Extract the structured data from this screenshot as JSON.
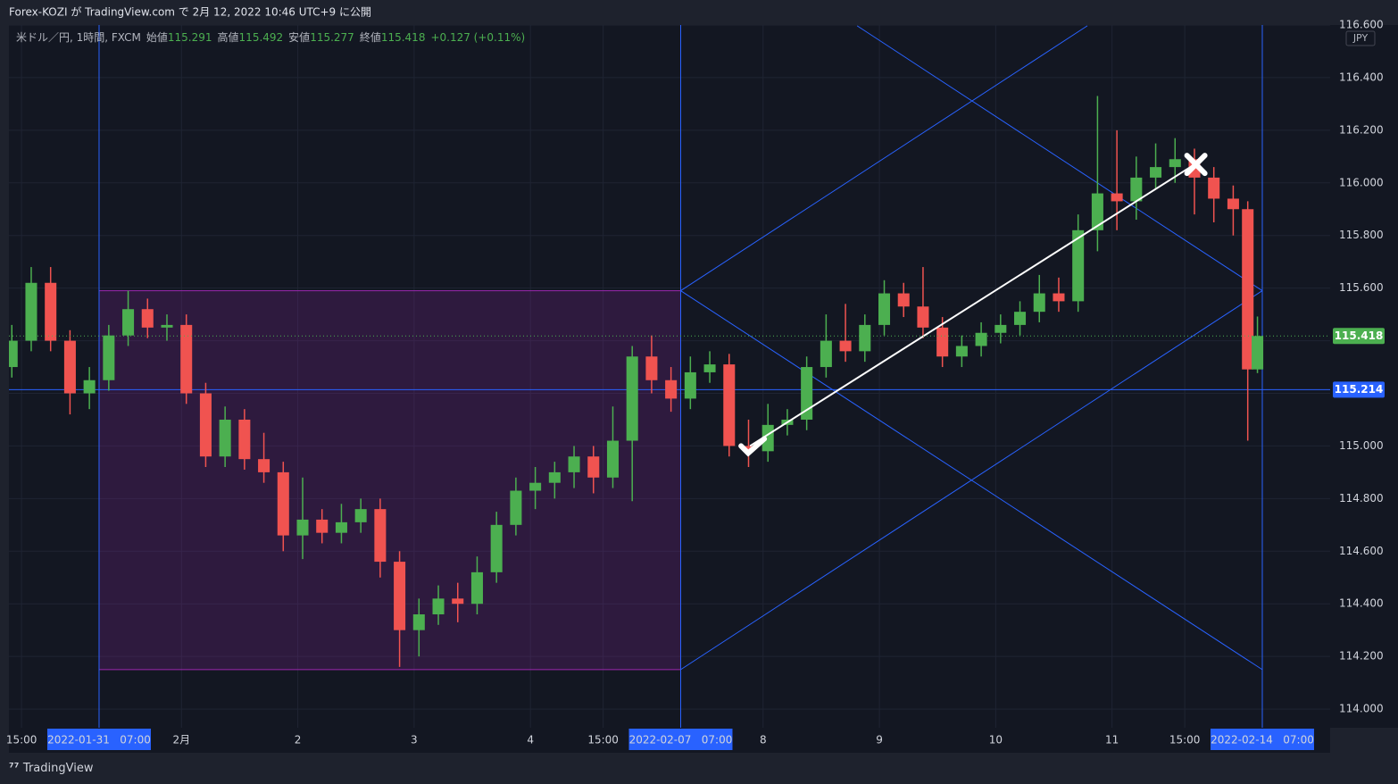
{
  "header": {
    "title": "Forex-KOZI が TradingView.com で 2月 12, 2022 10:46 UTC+9 に公開",
    "symbol": "米ドル／円, 1時間, FXCM",
    "open_label": "始値",
    "high_label": "高値",
    "low_label": "安値",
    "close_label": "終値",
    "change": "+0.127 (+0.11%)"
  },
  "footer": {
    "brand": "TradingView"
  },
  "chart_data": {
    "type": "candlestick",
    "currency": "JPY",
    "up_color": "#4caf50",
    "down_color": "#f05350",
    "x": [
      -11,
      -7,
      -3,
      1,
      5,
      9,
      13,
      17,
      21,
      25,
      29,
      33,
      37,
      41,
      45,
      49,
      53,
      57,
      61,
      65,
      69,
      73,
      77,
      81,
      85,
      89,
      93,
      97,
      101,
      105,
      109,
      113,
      117,
      121,
      125,
      129,
      133,
      137,
      141,
      145,
      149,
      153,
      157,
      161,
      165,
      169,
      173,
      177,
      181,
      185,
      189,
      193,
      197,
      201,
      205,
      209,
      213,
      217,
      221,
      225,
      229,
      233,
      237,
      241,
      244,
      246
    ],
    "open": [
      115.3,
      115.4,
      115.62,
      115.4,
      115.2,
      115.25,
      115.42,
      115.52,
      115.45,
      115.46,
      115.2,
      114.96,
      115.1,
      114.95,
      114.9,
      114.66,
      114.72,
      114.67,
      114.71,
      114.76,
      114.56,
      114.3,
      114.36,
      114.42,
      114.4,
      114.52,
      114.7,
      114.83,
      114.86,
      114.9,
      114.96,
      114.88,
      115.02,
      115.34,
      115.25,
      115.18,
      115.28,
      115.31,
      115.0,
      114.98,
      115.08,
      115.1,
      115.3,
      115.4,
      115.36,
      115.46,
      115.58,
      115.53,
      115.45,
      115.34,
      115.38,
      115.43,
      115.46,
      115.51,
      115.58,
      115.55,
      115.82,
      115.96,
      115.93,
      116.02,
      116.06,
      116.09,
      116.02,
      115.94,
      115.9,
      115.291
    ],
    "high": [
      115.46,
      115.68,
      115.68,
      115.44,
      115.3,
      115.46,
      115.59,
      115.56,
      115.5,
      115.5,
      115.24,
      115.15,
      115.14,
      115.05,
      114.94,
      114.88,
      114.76,
      114.78,
      114.8,
      114.8,
      114.6,
      114.42,
      114.47,
      114.48,
      114.58,
      114.75,
      114.88,
      114.92,
      114.94,
      115.0,
      115.0,
      115.15,
      115.38,
      115.42,
      115.3,
      115.34,
      115.36,
      115.35,
      115.1,
      115.16,
      115.14,
      115.34,
      115.5,
      115.54,
      115.5,
      115.63,
      115.62,
      115.68,
      115.49,
      115.42,
      115.47,
      115.5,
      115.55,
      115.65,
      115.64,
      115.88,
      116.33,
      116.2,
      116.1,
      116.15,
      116.17,
      116.13,
      116.06,
      115.99,
      115.93,
      115.492
    ],
    "low": [
      115.26,
      115.36,
      115.36,
      115.12,
      115.14,
      115.21,
      115.38,
      115.41,
      115.4,
      115.16,
      114.92,
      114.92,
      114.91,
      114.86,
      114.6,
      114.57,
      114.63,
      114.63,
      114.67,
      114.5,
      114.16,
      114.2,
      114.32,
      114.33,
      114.36,
      114.48,
      114.66,
      114.76,
      114.8,
      114.84,
      114.82,
      114.84,
      114.79,
      115.2,
      115.13,
      115.14,
      115.24,
      114.96,
      114.92,
      114.94,
      115.04,
      115.06,
      115.26,
      115.32,
      115.32,
      115.42,
      115.49,
      115.41,
      115.3,
      115.3,
      115.34,
      115.39,
      115.42,
      115.47,
      115.51,
      115.51,
      115.74,
      115.82,
      115.86,
      115.98,
      116.0,
      115.88,
      115.85,
      115.8,
      115.02,
      115.277
    ],
    "close": [
      115.4,
      115.62,
      115.4,
      115.2,
      115.25,
      115.42,
      115.52,
      115.45,
      115.46,
      115.2,
      114.96,
      115.1,
      114.95,
      114.9,
      114.66,
      114.72,
      114.67,
      114.71,
      114.76,
      114.56,
      114.3,
      114.36,
      114.42,
      114.4,
      114.52,
      114.7,
      114.83,
      114.86,
      114.9,
      114.96,
      114.88,
      115.02,
      115.34,
      115.25,
      115.18,
      115.28,
      115.31,
      115.0,
      114.98,
      115.08,
      115.1,
      115.3,
      115.4,
      115.36,
      115.46,
      115.58,
      115.53,
      115.45,
      115.34,
      115.38,
      115.43,
      115.46,
      115.51,
      115.58,
      115.55,
      115.82,
      115.96,
      115.93,
      116.02,
      116.06,
      116.09,
      116.02,
      115.94,
      115.9,
      115.291,
      115.418
    ],
    "xlim": [
      -11.6,
      261
    ],
    "ylim": [
      113.929,
      116.6
    ],
    "yticks": [
      {
        "value": 114,
        "label": "114.000"
      },
      {
        "value": 114.2,
        "label": "114.200"
      },
      {
        "value": 114.4,
        "label": "114.400"
      },
      {
        "value": 114.6,
        "label": "114.600"
      },
      {
        "value": 114.8,
        "label": "114.800"
      },
      {
        "value": 115,
        "label": "115.000"
      },
      {
        "value": 115.2,
        "label": "115.200"
      },
      {
        "value": 115.4,
        "label": "115.400"
      },
      {
        "value": 115.6,
        "label": "115.600"
      },
      {
        "value": 115.8,
        "label": "115.800"
      },
      {
        "value": 116,
        "label": "116.000"
      },
      {
        "value": 116.2,
        "label": "116.200"
      },
      {
        "value": 116.4,
        "label": "116.400"
      },
      {
        "value": 116.6,
        "label": "116.600"
      }
    ],
    "xticks": [
      {
        "value": -9,
        "label": "15:00"
      },
      {
        "value": 7,
        "label": "2022-01-31   07:00",
        "highlight": true
      },
      {
        "value": 24,
        "label": "2月"
      },
      {
        "value": 48,
        "label": "2"
      },
      {
        "value": 72,
        "label": "3"
      },
      {
        "value": 96,
        "label": "4"
      },
      {
        "value": 111,
        "label": "15:00"
      },
      {
        "value": 127,
        "label": "2022-02-07   07:00",
        "highlight": true
      },
      {
        "value": 144,
        "label": "8"
      },
      {
        "value": 168,
        "label": "9"
      },
      {
        "value": 192,
        "label": "10"
      },
      {
        "value": 216,
        "label": "11"
      },
      {
        "value": 231,
        "label": "15:00"
      },
      {
        "value": 247,
        "label": "2022-02-14   07:00",
        "highlight": true
      }
    ],
    "grid": true,
    "drawings": {
      "rect": {
        "x": [
          7,
          127
        ],
        "y": [
          114.15,
          115.59
        ],
        "color": "#9c27b0"
      },
      "line_color": "#2962ff",
      "vlines": [
        7,
        127,
        247
      ],
      "hline": 115.214,
      "lines": [
        {
          "x": [
            127,
            247
          ],
          "y": [
            115.59,
            114.15
          ]
        },
        {
          "x": [
            127,
            247
          ],
          "y": [
            114.15,
            115.59
          ]
        },
        {
          "x": [
            163.4,
            247
          ],
          "y": [
            116.597,
            115.59
          ]
        },
        {
          "x": [
            127,
            210.9
          ],
          "y": [
            115.59,
            116.597
          ]
        }
      ],
      "trend": {
        "x": [
          141.3,
          233
        ],
        "y": [
          115.0,
          116.07
        ],
        "color": "#ffffff"
      },
      "check": {
        "x": 141.3,
        "y": 115.0
      },
      "cross": {
        "x": 233.3,
        "y": 116.07
      }
    }
  }
}
